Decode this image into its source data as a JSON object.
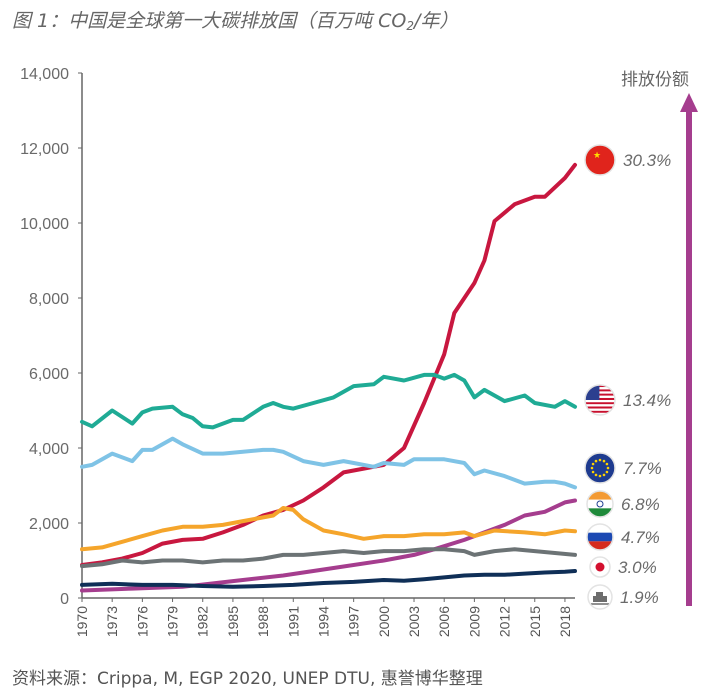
{
  "title": {
    "main": "图 1：中国是全球第一大碳排放国（百万吨 CO",
    "sub": "2",
    "tail": "/年）"
  },
  "source": "资料来源：Crippa, M, EGP 2020, UNEP DTU, 惠誉博华整理",
  "arrow_label": "排放份额",
  "colors": {
    "arrow": "#a53d8e"
  },
  "chart_data": {
    "type": "line",
    "ylim": [
      0,
      14000
    ],
    "yticks": [
      0,
      2000,
      4000,
      6000,
      8000,
      10000,
      12000,
      14000
    ],
    "ytick_labels": [
      "0",
      "2,000",
      "4,000",
      "6,000",
      "8,000",
      "10,000",
      "12,000",
      "14,000"
    ],
    "xlim": [
      1970,
      2019
    ],
    "xticks": [
      1970,
      1973,
      1976,
      1979,
      1982,
      1985,
      1988,
      1991,
      1994,
      1997,
      2000,
      2003,
      2006,
      2009,
      2012,
      2015,
      2018
    ],
    "grid": false,
    "series": [
      {
        "flag": "china-flag-icon",
        "share": "30.3%",
        "color": "#c8173f",
        "points": [
          [
            1970,
            880
          ],
          [
            1972,
            950
          ],
          [
            1974,
            1050
          ],
          [
            1976,
            1200
          ],
          [
            1978,
            1450
          ],
          [
            1980,
            1550
          ],
          [
            1982,
            1580
          ],
          [
            1984,
            1750
          ],
          [
            1986,
            1950
          ],
          [
            1988,
            2200
          ],
          [
            1990,
            2350
          ],
          [
            1992,
            2600
          ],
          [
            1994,
            2950
          ],
          [
            1996,
            3350
          ],
          [
            1998,
            3450
          ],
          [
            2000,
            3550
          ],
          [
            2002,
            4000
          ],
          [
            2004,
            5200
          ],
          [
            2006,
            6500
          ],
          [
            2007,
            7600
          ],
          [
            2009,
            8400
          ],
          [
            2010,
            9000
          ],
          [
            2011,
            10050
          ],
          [
            2013,
            10500
          ],
          [
            2015,
            10700
          ],
          [
            2016,
            10700
          ],
          [
            2018,
            11200
          ],
          [
            2019,
            11550
          ]
        ]
      },
      {
        "flag": "usa-flag-icon",
        "share": "13.4%",
        "color": "#1fab95",
        "points": [
          [
            1970,
            4700
          ],
          [
            1971,
            4580
          ],
          [
            1973,
            5000
          ],
          [
            1975,
            4650
          ],
          [
            1976,
            4950
          ],
          [
            1977,
            5050
          ],
          [
            1979,
            5100
          ],
          [
            1980,
            4900
          ],
          [
            1981,
            4800
          ],
          [
            1982,
            4580
          ],
          [
            1983,
            4550
          ],
          [
            1985,
            4750
          ],
          [
            1986,
            4750
          ],
          [
            1988,
            5100
          ],
          [
            1989,
            5200
          ],
          [
            1990,
            5100
          ],
          [
            1991,
            5050
          ],
          [
            1993,
            5200
          ],
          [
            1995,
            5350
          ],
          [
            1997,
            5650
          ],
          [
            1999,
            5700
          ],
          [
            2000,
            5900
          ],
          [
            2002,
            5800
          ],
          [
            2004,
            5950
          ],
          [
            2005,
            5950
          ],
          [
            2006,
            5850
          ],
          [
            2007,
            5950
          ],
          [
            2008,
            5800
          ],
          [
            2009,
            5350
          ],
          [
            2010,
            5550
          ],
          [
            2012,
            5250
          ],
          [
            2014,
            5400
          ],
          [
            2015,
            5200
          ],
          [
            2017,
            5100
          ],
          [
            2018,
            5250
          ],
          [
            2019,
            5100
          ]
        ]
      },
      {
        "flag": "eu-flag-icon",
        "share": "7.7%",
        "color": "#7fc3e6",
        "points": [
          [
            1970,
            3500
          ],
          [
            1971,
            3550
          ],
          [
            1973,
            3850
          ],
          [
            1975,
            3650
          ],
          [
            1976,
            3950
          ],
          [
            1977,
            3950
          ],
          [
            1979,
            4250
          ],
          [
            1980,
            4100
          ],
          [
            1982,
            3850
          ],
          [
            1984,
            3850
          ],
          [
            1986,
            3900
          ],
          [
            1988,
            3950
          ],
          [
            1989,
            3950
          ],
          [
            1990,
            3900
          ],
          [
            1992,
            3650
          ],
          [
            1994,
            3550
          ],
          [
            1996,
            3650
          ],
          [
            1997,
            3600
          ],
          [
            1999,
            3500
          ],
          [
            2000,
            3600
          ],
          [
            2002,
            3550
          ],
          [
            2003,
            3700
          ],
          [
            2006,
            3700
          ],
          [
            2008,
            3600
          ],
          [
            2009,
            3300
          ],
          [
            2010,
            3400
          ],
          [
            2012,
            3250
          ],
          [
            2014,
            3050
          ],
          [
            2016,
            3100
          ],
          [
            2017,
            3100
          ],
          [
            2018,
            3050
          ],
          [
            2019,
            2950
          ]
        ]
      },
      {
        "flag": "india-flag-icon",
        "share": "6.8%",
        "color": "#a53d8e",
        "points": [
          [
            1970,
            200
          ],
          [
            1975,
            250
          ],
          [
            1980,
            300
          ],
          [
            1985,
            450
          ],
          [
            1990,
            600
          ],
          [
            1995,
            800
          ],
          [
            2000,
            1000
          ],
          [
            2003,
            1150
          ],
          [
            2005,
            1300
          ],
          [
            2008,
            1550
          ],
          [
            2010,
            1750
          ],
          [
            2012,
            1950
          ],
          [
            2014,
            2200
          ],
          [
            2016,
            2300
          ],
          [
            2018,
            2550
          ],
          [
            2019,
            2600
          ]
        ]
      },
      {
        "flag": "russia-flag-icon",
        "share": "4.7%",
        "color": "#f5a52b",
        "points": [
          [
            1970,
            1300
          ],
          [
            1972,
            1350
          ],
          [
            1974,
            1500
          ],
          [
            1976,
            1650
          ],
          [
            1978,
            1800
          ],
          [
            1980,
            1900
          ],
          [
            1982,
            1900
          ],
          [
            1984,
            1950
          ],
          [
            1986,
            2050
          ],
          [
            1988,
            2150
          ],
          [
            1989,
            2200
          ],
          [
            1990,
            2400
          ],
          [
            1991,
            2350
          ],
          [
            1992,
            2100
          ],
          [
            1994,
            1800
          ],
          [
            1996,
            1700
          ],
          [
            1998,
            1580
          ],
          [
            2000,
            1650
          ],
          [
            2002,
            1650
          ],
          [
            2004,
            1700
          ],
          [
            2006,
            1700
          ],
          [
            2008,
            1750
          ],
          [
            2009,
            1650
          ],
          [
            2011,
            1800
          ],
          [
            2014,
            1750
          ],
          [
            2016,
            1700
          ],
          [
            2018,
            1800
          ],
          [
            2019,
            1780
          ]
        ]
      },
      {
        "flag": "japan-flag-icon",
        "share": "3.0%",
        "color": "#6c7375",
        "points": [
          [
            1970,
            850
          ],
          [
            1972,
            900
          ],
          [
            1974,
            1000
          ],
          [
            1976,
            950
          ],
          [
            1978,
            1000
          ],
          [
            1980,
            1000
          ],
          [
            1982,
            950
          ],
          [
            1984,
            1000
          ],
          [
            1986,
            1000
          ],
          [
            1988,
            1050
          ],
          [
            1990,
            1150
          ],
          [
            1992,
            1150
          ],
          [
            1994,
            1200
          ],
          [
            1996,
            1250
          ],
          [
            1998,
            1200
          ],
          [
            2000,
            1250
          ],
          [
            2002,
            1250
          ],
          [
            2004,
            1300
          ],
          [
            2006,
            1300
          ],
          [
            2008,
            1250
          ],
          [
            2009,
            1150
          ],
          [
            2011,
            1250
          ],
          [
            2013,
            1300
          ],
          [
            2015,
            1250
          ],
          [
            2017,
            1200
          ],
          [
            2019,
            1150
          ]
        ]
      },
      {
        "flag": "ship-icon",
        "share": "1.9%",
        "color": "#0f2f57",
        "points": [
          [
            1970,
            350
          ],
          [
            1973,
            380
          ],
          [
            1976,
            350
          ],
          [
            1979,
            350
          ],
          [
            1982,
            320
          ],
          [
            1985,
            300
          ],
          [
            1988,
            320
          ],
          [
            1991,
            350
          ],
          [
            1994,
            400
          ],
          [
            1997,
            430
          ],
          [
            2000,
            480
          ],
          [
            2002,
            460
          ],
          [
            2004,
            500
          ],
          [
            2006,
            550
          ],
          [
            2008,
            600
          ],
          [
            2010,
            620
          ],
          [
            2012,
            620
          ],
          [
            2014,
            650
          ],
          [
            2016,
            680
          ],
          [
            2018,
            700
          ],
          [
            2019,
            720
          ]
        ]
      }
    ]
  }
}
